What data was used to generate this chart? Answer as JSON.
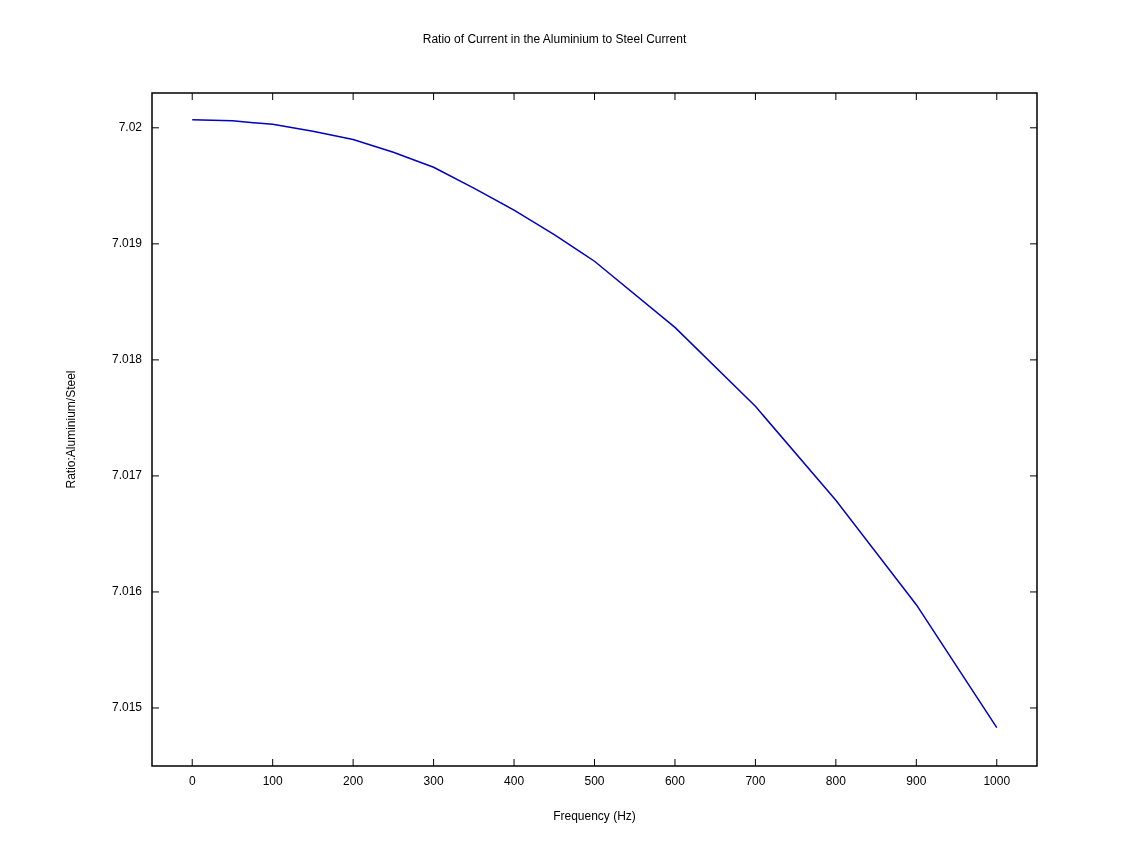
{
  "chart_data": {
    "type": "line",
    "title": "Ratio of Current in the Aluminium to Steel Current",
    "xlabel": "Frequency (Hz)",
    "ylabel": "Ratio:Aluminium/Steel",
    "x": [
      0,
      50,
      100,
      150,
      200,
      250,
      300,
      350,
      400,
      450,
      500,
      600,
      700,
      800,
      900,
      1000
    ],
    "series": [
      {
        "color": "#0000c0",
        "values": [
          7.02007,
          7.02006,
          7.02003,
          7.01997,
          7.0199,
          7.01979,
          7.01966,
          7.01948,
          7.01929,
          7.01908,
          7.01885,
          7.01828,
          7.0176,
          7.01679,
          7.01589,
          7.01483
        ]
      }
    ],
    "xlim": [
      -50,
      1050
    ],
    "xticks": [
      0,
      100,
      200,
      300,
      400,
      500,
      600,
      700,
      800,
      900,
      1000
    ],
    "ylim": [
      7.0145,
      7.0203
    ],
    "yticks": [
      7.015,
      7.016,
      7.017,
      7.018,
      7.019,
      7.02
    ],
    "grid": false,
    "legend": false,
    "marker": "none",
    "line_style": "solid"
  }
}
